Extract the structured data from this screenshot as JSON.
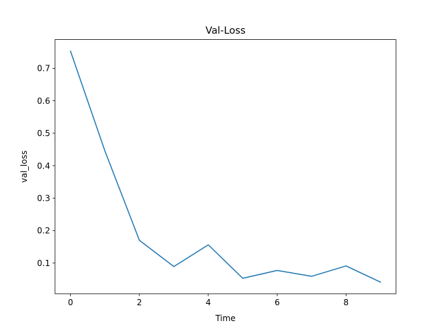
{
  "chart_data": {
    "type": "line",
    "title": "Val-Loss",
    "xlabel": "Time",
    "ylabel": "val_loss",
    "xlim": [
      -0.45,
      9.45
    ],
    "ylim": [
      0.0054,
      0.7886
    ],
    "x_ticks": [
      0,
      2,
      4,
      6,
      8
    ],
    "x_tick_labels": [
      "0",
      "2",
      "4",
      "6",
      "8"
    ],
    "y_ticks": [
      0.1,
      0.2,
      0.3,
      0.4,
      0.5,
      0.6,
      0.7
    ],
    "y_tick_labels": [
      "0.1",
      "0.2",
      "0.3",
      "0.4",
      "0.5",
      "0.6",
      "0.7"
    ],
    "grid": false,
    "series": [
      {
        "color": "#1f77b4",
        "x": [
          0,
          1,
          2,
          3,
          4,
          5,
          6,
          7,
          8,
          9
        ],
        "values": [
          0.753,
          0.445,
          0.17,
          0.089,
          0.156,
          0.053,
          0.077,
          0.059,
          0.091,
          0.041
        ]
      }
    ]
  }
}
